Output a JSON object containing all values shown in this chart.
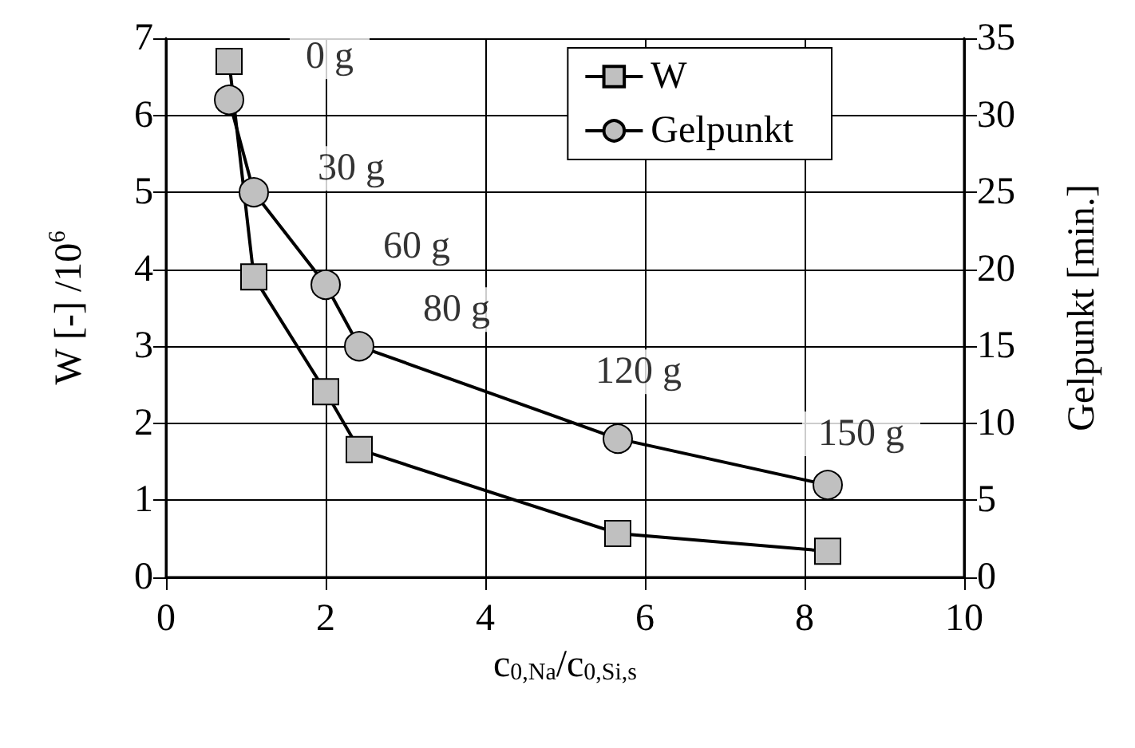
{
  "chart_data": {
    "type": "line",
    "xlabel": "c$_{0,Na}$/c$_{0,Si,s}$",
    "ylabel": "W [-] /10$^{6}$",
    "y2label": "Gelpunkt [min.]",
    "x": [
      0.79,
      1.1,
      2.0,
      2.42,
      5.66,
      8.29
    ],
    "series": [
      {
        "name": "W",
        "color": "#c0c0c0",
        "marker": "square",
        "values": [
          6.7,
          3.9,
          2.41,
          1.66,
          0.57,
          0.34
        ]
      },
      {
        "name": "Gelpunkt",
        "color": "#c0c0c0",
        "marker": "circle",
        "axis": "y2",
        "values": [
          31,
          25,
          19,
          15,
          9,
          6
        ]
      }
    ],
    "xlim": [
      0,
      10
    ],
    "xticks": [
      0,
      2,
      4,
      6,
      8,
      10
    ],
    "ylim": [
      0,
      7
    ],
    "yticks": [
      0,
      1,
      2,
      3,
      4,
      5,
      6,
      7
    ],
    "y2lim": [
      0,
      35
    ],
    "y2ticks": [
      0,
      5,
      10,
      15,
      20,
      25,
      30,
      35
    ],
    "annotations": [
      "0 g",
      "30 g",
      "60 g",
      "80 g",
      "120 g",
      "150 g"
    ],
    "grid": true,
    "legend": "top right"
  }
}
